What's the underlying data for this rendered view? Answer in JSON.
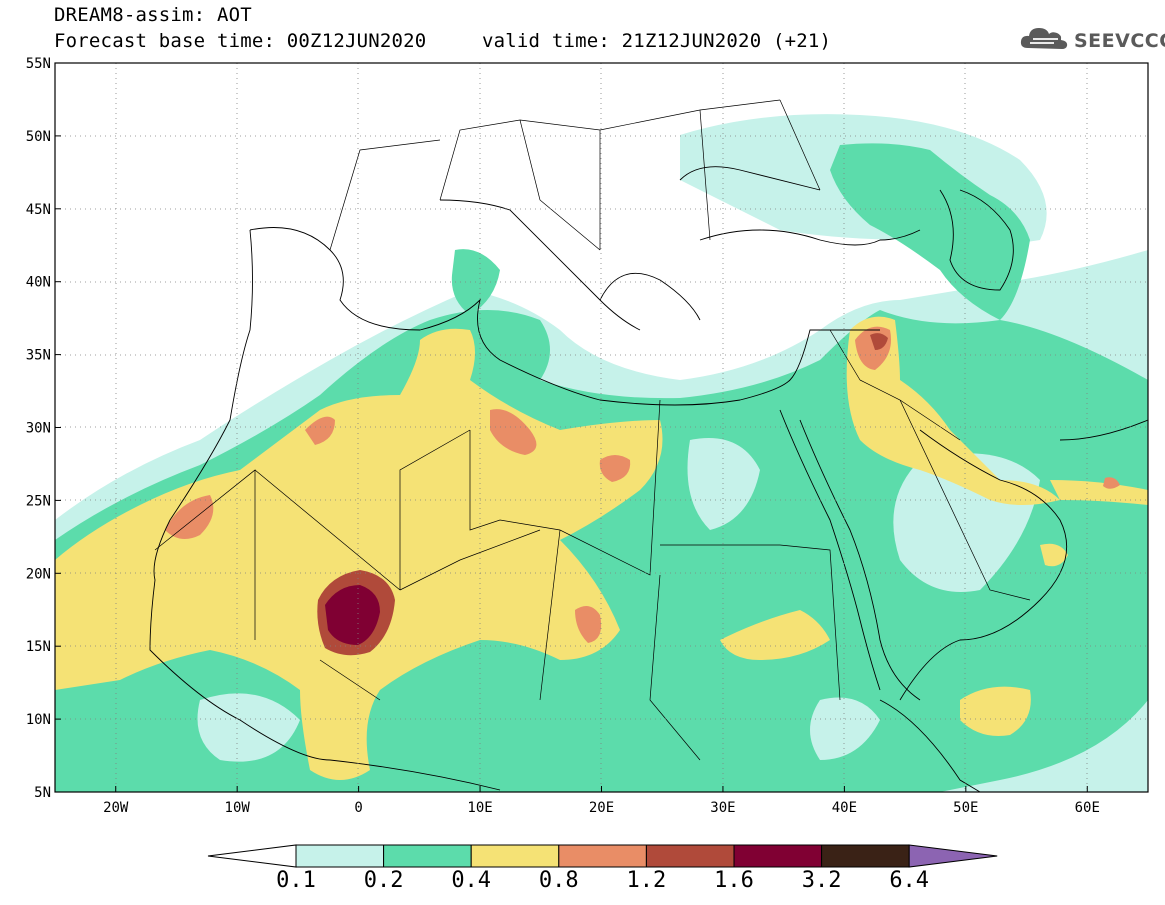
{
  "title": {
    "line1": "DREAM8-assim: AOT",
    "base_time": "Forecast base time: 00Z12JUN2020",
    "valid_time": "valid time: 21Z12JUN2020 (+21)"
  },
  "logo": {
    "text": "SEEVCCC",
    "icon": "cloud-icon"
  },
  "map": {
    "lon_range": [
      -25,
      65
    ],
    "lat_range": [
      5,
      55
    ],
    "lat_ticks": [
      "55N",
      "50N",
      "45N",
      "40N",
      "35N",
      "30N",
      "25N",
      "20N",
      "15N",
      "10N",
      "5N"
    ],
    "lon_ticks": [
      "20W",
      "10W",
      "0",
      "10E",
      "20E",
      "30E",
      "40E",
      "50E",
      "60E"
    ],
    "variable": "AOT"
  },
  "colorbar": {
    "labels": [
      "0.1",
      "0.2",
      "0.4",
      "0.8",
      "1.2",
      "1.6",
      "3.2",
      "6.4"
    ],
    "colors": [
      "#ffffff",
      "#c6f2ea",
      "#5cdcab",
      "#f5e275",
      "#e98d66",
      "#b04a3a",
      "#800033",
      "#3a2216",
      "#8c64b2"
    ]
  }
}
